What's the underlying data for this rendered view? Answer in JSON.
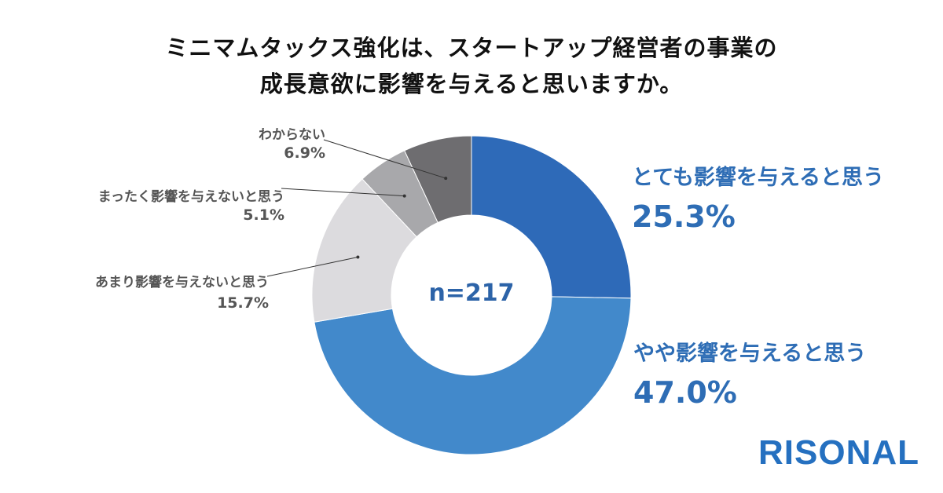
{
  "chart_data": {
    "type": "pie",
    "title_lines": [
      "ミニマムタックス強化は、スタートアップ経営者の事業の",
      "成長意欲に影響を与えると思いますか。"
    ],
    "center_label": "n=217",
    "slices": [
      {
        "label": "とても影響を与えると思う",
        "value": 25.3,
        "display": "25.3%",
        "color": "#2e6ab8"
      },
      {
        "label": "やや影響を与えると思う",
        "value": 47.0,
        "display": "47.0%",
        "color": "#4289cb"
      },
      {
        "label": "あまり影響を与えないと思う",
        "value": 15.7,
        "display": "15.7%",
        "color": "#dcdbde"
      },
      {
        "label": "まったく影響を与えないと思う",
        "value": 5.1,
        "display": "5.1%",
        "color": "#a8a8ab"
      },
      {
        "label": "わからない",
        "value": 6.9,
        "display": "6.9%",
        "color": "#6e6d70"
      }
    ]
  },
  "brand": "RISONAL"
}
